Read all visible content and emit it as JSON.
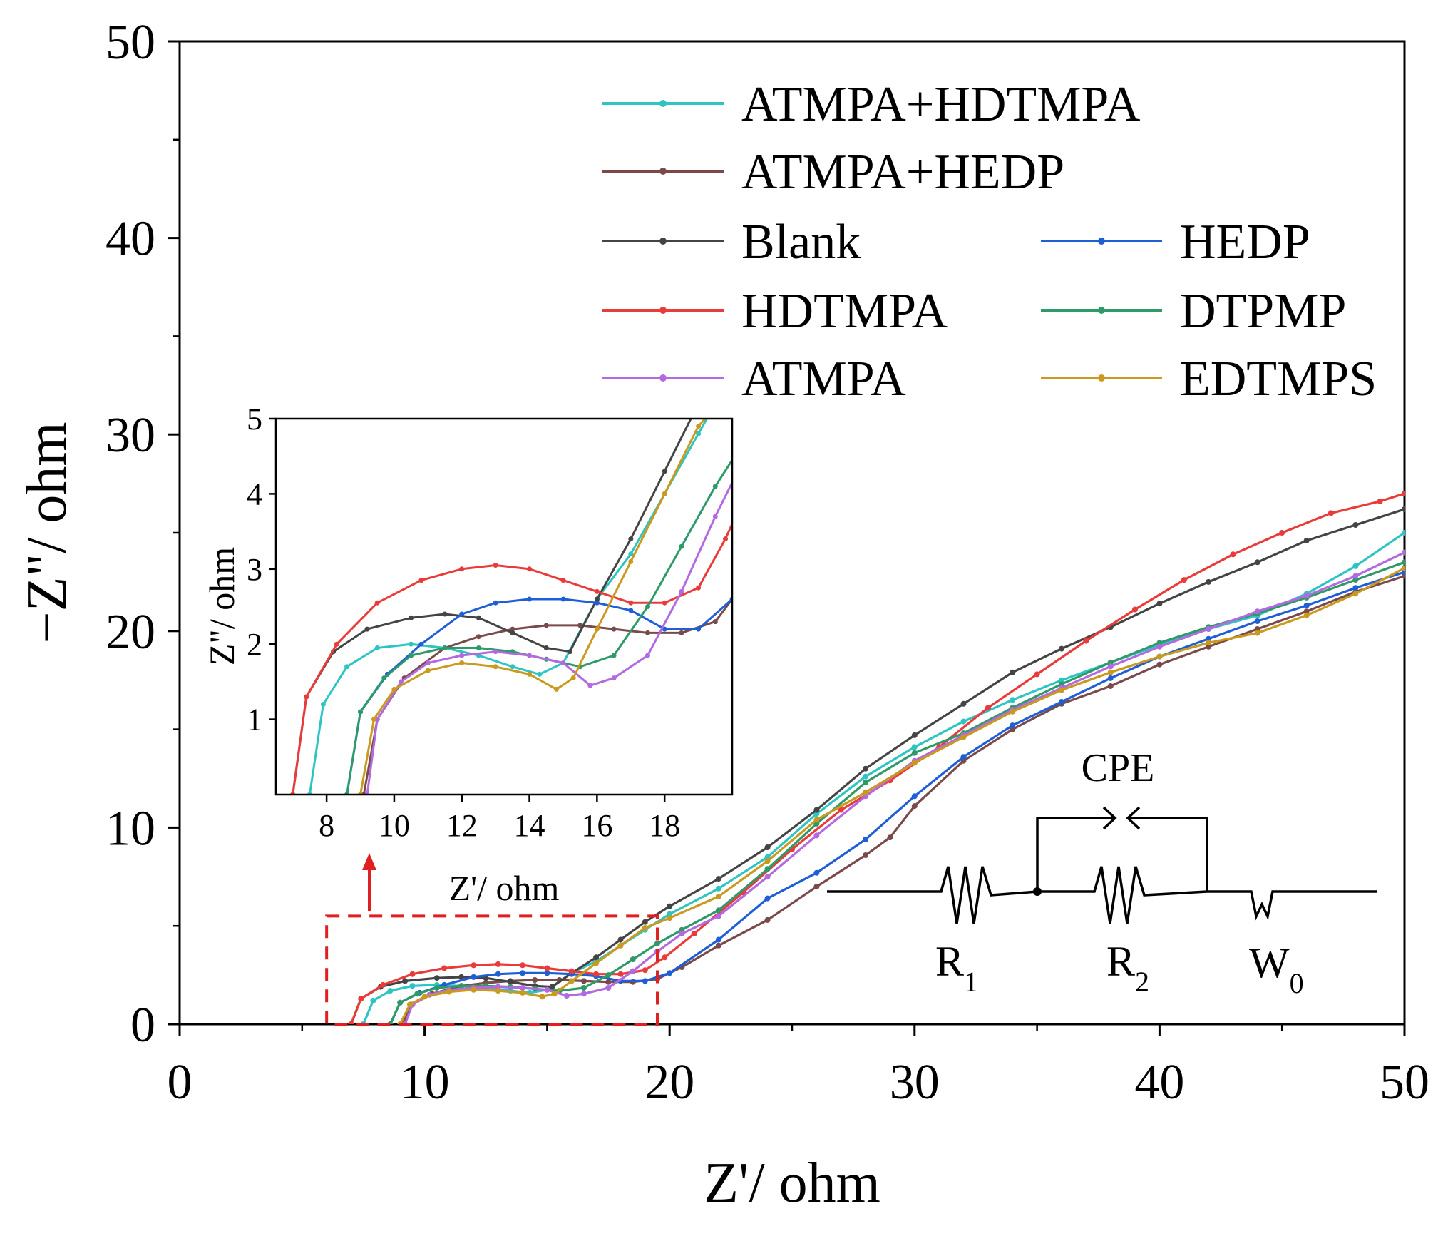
{
  "chart_data": {
    "type": "line",
    "title": "",
    "xlabel": "Z'/ ohm",
    "ylabel": "−Z\"/ ohm",
    "xlim": [
      0,
      50
    ],
    "ylim": [
      0,
      50
    ],
    "xticks": [
      "0",
      "10",
      "20",
      "30",
      "40",
      "50"
    ],
    "yticks": [
      "0",
      "10",
      "20",
      "30",
      "40",
      "50"
    ],
    "legend_position": "top-right",
    "zoom_region": {
      "x": [
        6,
        19.5
      ],
      "y": [
        0,
        5.5
      ]
    },
    "series": [
      {
        "name": "ATMPA+HDTMPA",
        "color": "#2ec4c4",
        "values": [
          [
            7.5,
            0
          ],
          [
            7.9,
            1.2
          ],
          [
            8.6,
            1.7
          ],
          [
            9.5,
            1.95
          ],
          [
            10.5,
            2.0
          ],
          [
            11.5,
            1.95
          ],
          [
            12.5,
            1.85
          ],
          [
            13.5,
            1.7
          ],
          [
            14.3,
            1.6
          ],
          [
            15,
            1.75
          ],
          [
            16,
            2.6
          ],
          [
            17,
            3.2
          ],
          [
            18,
            4.0
          ],
          [
            19,
            4.8
          ],
          [
            20,
            5.6
          ],
          [
            22,
            6.9
          ],
          [
            24,
            8.5
          ],
          [
            26,
            10.7
          ],
          [
            28,
            12.6
          ],
          [
            30,
            14.1
          ],
          [
            32,
            15.4
          ],
          [
            34,
            16.5
          ],
          [
            36,
            17.5
          ],
          [
            38,
            18.4
          ],
          [
            40,
            19.3
          ],
          [
            42,
            20.1
          ],
          [
            44,
            20.8
          ],
          [
            46,
            21.9
          ],
          [
            48,
            23.3
          ],
          [
            50,
            25.0
          ]
        ]
      },
      {
        "name": "ATMPA+HEDP",
        "color": "#7a4a4a",
        "values": [
          [
            9.1,
            0
          ],
          [
            9.5,
            1.0
          ],
          [
            10.3,
            1.55
          ],
          [
            11.5,
            1.95
          ],
          [
            12.5,
            2.1
          ],
          [
            13.5,
            2.2
          ],
          [
            14.5,
            2.25
          ],
          [
            15.5,
            2.25
          ],
          [
            16.5,
            2.2
          ],
          [
            17.5,
            2.15
          ],
          [
            18.5,
            2.15
          ],
          [
            19.5,
            2.3
          ],
          [
            20.5,
            2.9
          ],
          [
            22,
            4.0
          ],
          [
            24,
            5.3
          ],
          [
            26,
            7.0
          ],
          [
            28,
            8.6
          ],
          [
            29,
            9.5
          ],
          [
            30,
            11.1
          ],
          [
            32,
            13.4
          ],
          [
            34,
            15.0
          ],
          [
            36,
            16.3
          ],
          [
            38,
            17.2
          ],
          [
            40,
            18.3
          ],
          [
            42,
            19.2
          ],
          [
            44,
            20.1
          ],
          [
            46,
            21.0
          ],
          [
            48,
            22.0
          ],
          [
            50,
            22.8
          ]
        ]
      },
      {
        "name": "Blank",
        "color": "#444444",
        "values": [
          [
            7.0,
            0
          ],
          [
            7.4,
            1.3
          ],
          [
            8.2,
            1.9
          ],
          [
            9.2,
            2.2
          ],
          [
            10.5,
            2.35
          ],
          [
            11.5,
            2.4
          ],
          [
            12.5,
            2.35
          ],
          [
            13.5,
            2.15
          ],
          [
            14.5,
            1.95
          ],
          [
            15.2,
            1.9
          ],
          [
            16,
            2.6
          ],
          [
            17,
            3.4
          ],
          [
            18,
            4.3
          ],
          [
            19,
            5.2
          ],
          [
            20,
            6.0
          ],
          [
            22,
            7.4
          ],
          [
            24,
            9.0
          ],
          [
            26,
            10.9
          ],
          [
            28,
            13.0
          ],
          [
            30,
            14.7
          ],
          [
            32,
            16.3
          ],
          [
            34,
            17.9
          ],
          [
            36,
            19.1
          ],
          [
            38,
            20.2
          ],
          [
            40,
            21.4
          ],
          [
            42,
            22.5
          ],
          [
            44,
            23.5
          ],
          [
            46,
            24.6
          ],
          [
            48,
            25.4
          ],
          [
            50,
            26.2
          ]
        ]
      },
      {
        "name": "HEDP",
        "color": "#1f5fd6",
        "values": [
          [
            8.6,
            0
          ],
          [
            9.0,
            1.1
          ],
          [
            9.8,
            1.6
          ],
          [
            10.8,
            2.0
          ],
          [
            12,
            2.4
          ],
          [
            13,
            2.55
          ],
          [
            14,
            2.6
          ],
          [
            15,
            2.6
          ],
          [
            16,
            2.55
          ],
          [
            17,
            2.45
          ],
          [
            18,
            2.2
          ],
          [
            19,
            2.2
          ],
          [
            20,
            2.6
          ],
          [
            22,
            4.3
          ],
          [
            24,
            6.4
          ],
          [
            26,
            7.7
          ],
          [
            28,
            9.4
          ],
          [
            30,
            11.6
          ],
          [
            32,
            13.6
          ],
          [
            34,
            15.2
          ],
          [
            36,
            16.4
          ],
          [
            38,
            17.6
          ],
          [
            40,
            18.7
          ],
          [
            42,
            19.6
          ],
          [
            44,
            20.5
          ],
          [
            46,
            21.3
          ],
          [
            48,
            22.2
          ],
          [
            50,
            23.0
          ]
        ]
      },
      {
        "name": "HDTMPA",
        "color": "#ea3b3b",
        "values": [
          [
            7.0,
            0
          ],
          [
            7.4,
            1.3
          ],
          [
            8.3,
            2.0
          ],
          [
            9.5,
            2.55
          ],
          [
            10.8,
            2.85
          ],
          [
            12,
            3.0
          ],
          [
            13,
            3.05
          ],
          [
            14,
            3.0
          ],
          [
            15,
            2.85
          ],
          [
            16,
            2.7
          ],
          [
            17,
            2.55
          ],
          [
            18,
            2.55
          ],
          [
            19,
            2.75
          ],
          [
            19.8,
            3.4
          ],
          [
            21,
            4.6
          ],
          [
            23,
            6.7
          ],
          [
            25,
            8.9
          ],
          [
            27,
            10.9
          ],
          [
            29,
            12.4
          ],
          [
            31,
            14.1
          ],
          [
            33,
            16.1
          ],
          [
            35,
            17.8
          ],
          [
            37,
            19.5
          ],
          [
            39,
            21.1
          ],
          [
            41,
            22.6
          ],
          [
            43,
            23.9
          ],
          [
            45,
            25.0
          ],
          [
            47,
            26.0
          ],
          [
            49,
            26.6
          ],
          [
            50,
            27.0
          ]
        ]
      },
      {
        "name": "DTPMP",
        "color": "#2e9a6a",
        "values": [
          [
            8.6,
            0
          ],
          [
            9.0,
            1.1
          ],
          [
            9.7,
            1.55
          ],
          [
            10.5,
            1.85
          ],
          [
            11.5,
            1.95
          ],
          [
            12.5,
            1.95
          ],
          [
            13.5,
            1.9
          ],
          [
            14.5,
            1.8
          ],
          [
            15.5,
            1.7
          ],
          [
            16.5,
            1.85
          ],
          [
            17.5,
            2.5
          ],
          [
            18.5,
            3.3
          ],
          [
            19.5,
            4.1
          ],
          [
            20.5,
            4.8
          ],
          [
            22,
            5.8
          ],
          [
            24,
            7.9
          ],
          [
            26,
            10.2
          ],
          [
            28,
            12.3
          ],
          [
            30,
            13.8
          ],
          [
            32,
            14.8
          ],
          [
            34,
            16.1
          ],
          [
            36,
            17.3
          ],
          [
            38,
            18.4
          ],
          [
            40,
            19.4
          ],
          [
            42,
            20.2
          ],
          [
            44,
            20.9
          ],
          [
            46,
            21.7
          ],
          [
            48,
            22.6
          ],
          [
            50,
            23.5
          ]
        ]
      },
      {
        "name": "ATMPA",
        "color": "#b36ae0",
        "values": [
          [
            9.2,
            0
          ],
          [
            9.5,
            1.0
          ],
          [
            10.2,
            1.5
          ],
          [
            11,
            1.75
          ],
          [
            12,
            1.85
          ],
          [
            13,
            1.9
          ],
          [
            14,
            1.85
          ],
          [
            15,
            1.75
          ],
          [
            15.8,
            1.45
          ],
          [
            16.5,
            1.55
          ],
          [
            17.5,
            1.85
          ],
          [
            18.5,
            2.7
          ],
          [
            19.5,
            3.7
          ],
          [
            20.5,
            4.6
          ],
          [
            22,
            5.5
          ],
          [
            24,
            7.5
          ],
          [
            26,
            9.6
          ],
          [
            28,
            11.6
          ],
          [
            30,
            13.4
          ],
          [
            32,
            14.7
          ],
          [
            34,
            16.0
          ],
          [
            36,
            17.1
          ],
          [
            38,
            18.2
          ],
          [
            40,
            19.2
          ],
          [
            42,
            20.1
          ],
          [
            44,
            21.0
          ],
          [
            46,
            21.8
          ],
          [
            48,
            22.8
          ],
          [
            50,
            24.0
          ]
        ]
      },
      {
        "name": "EDTMPS",
        "color": "#c99a1e",
        "values": [
          [
            9.0,
            0
          ],
          [
            9.4,
            1.0
          ],
          [
            10,
            1.4
          ],
          [
            11,
            1.65
          ],
          [
            12,
            1.75
          ],
          [
            13,
            1.7
          ],
          [
            14,
            1.6
          ],
          [
            14.8,
            1.4
          ],
          [
            15.3,
            1.55
          ],
          [
            16,
            2.2
          ],
          [
            17,
            3.1
          ],
          [
            18,
            4.0
          ],
          [
            19,
            4.9
          ],
          [
            20,
            5.4
          ],
          [
            22,
            6.5
          ],
          [
            24,
            8.3
          ],
          [
            26,
            10.4
          ],
          [
            28,
            11.8
          ],
          [
            30,
            13.3
          ],
          [
            32,
            14.6
          ],
          [
            34,
            15.9
          ],
          [
            36,
            17.0
          ],
          [
            38,
            17.9
          ],
          [
            40,
            18.7
          ],
          [
            42,
            19.4
          ],
          [
            44,
            19.9
          ],
          [
            46,
            20.8
          ],
          [
            48,
            21.9
          ],
          [
            50,
            23.2
          ]
        ]
      }
    ],
    "inset": {
      "xlabel": "Z'/ ohm",
      "ylabel": "Z\"/ ohm",
      "xlim": [
        6.5,
        20
      ],
      "ylim": [
        0,
        5
      ],
      "xticks": [
        "8",
        "10",
        "12",
        "14",
        "16",
        "18"
      ],
      "yticks": [
        "1",
        "2",
        "3",
        "4",
        "5"
      ]
    },
    "circuit": {
      "labels": {
        "cpe": "CPE",
        "r1_main": "R",
        "r1_sub": "1",
        "r2_main": "R",
        "r2_sub": "2",
        "w_main": "W",
        "w_sub": "0"
      }
    }
  }
}
